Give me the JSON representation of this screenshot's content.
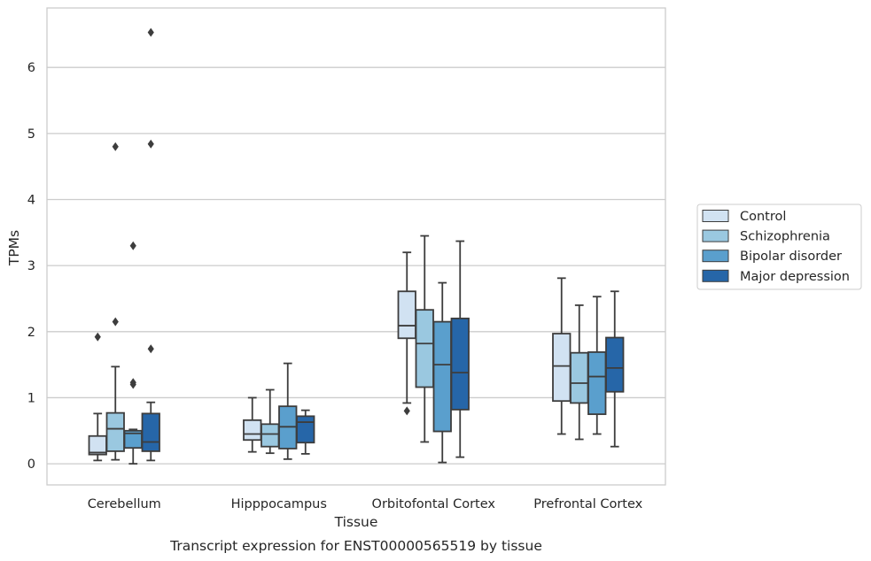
{
  "chart_data": {
    "type": "box",
    "title": "Transcript expression for ENST00000565519 by tissue",
    "xlabel": "Tissue",
    "ylabel": "TPMs",
    "ylim": [
      -0.32,
      6.9
    ],
    "yticks": [
      0,
      1,
      2,
      3,
      4,
      5,
      6
    ],
    "grid": true,
    "legend_position": "right",
    "categories": [
      "Cerebellum",
      "Hipppocampus",
      "Orbitofontal Cortex",
      "Prefrontal Cortex"
    ],
    "series": [
      {
        "name": "Control",
        "color": "#d1e2f2",
        "boxes": [
          {
            "whislo": 0.05,
            "q1": 0.14,
            "med": 0.17,
            "q3": 0.42,
            "whishi": 0.76,
            "fliers": [
              1.92
            ]
          },
          {
            "whislo": 0.18,
            "q1": 0.36,
            "med": 0.45,
            "q3": 0.66,
            "whishi": 1.0,
            "fliers": []
          },
          {
            "whislo": 0.92,
            "q1": 1.9,
            "med": 2.09,
            "q3": 2.61,
            "whishi": 3.2,
            "fliers": [
              0.8
            ]
          },
          {
            "whislo": 0.45,
            "q1": 0.95,
            "med": 1.48,
            "q3": 1.97,
            "whishi": 2.81,
            "fliers": []
          }
        ]
      },
      {
        "name": "Schizophrenia",
        "color": "#9ac8e0",
        "boxes": [
          {
            "whislo": 0.06,
            "q1": 0.19,
            "med": 0.53,
            "q3": 0.77,
            "whishi": 1.47,
            "fliers": [
              2.15,
              4.8
            ]
          },
          {
            "whislo": 0.16,
            "q1": 0.26,
            "med": 0.45,
            "q3": 0.6,
            "whishi": 1.12,
            "fliers": []
          },
          {
            "whislo": 0.33,
            "q1": 1.16,
            "med": 1.82,
            "q3": 2.33,
            "whishi": 3.45,
            "fliers": []
          },
          {
            "whislo": 0.37,
            "q1": 0.92,
            "med": 1.22,
            "q3": 1.68,
            "whishi": 2.4,
            "fliers": []
          }
        ]
      },
      {
        "name": "Bipolar disorder",
        "color": "#5a9fcd",
        "boxes": [
          {
            "whislo": 0.0,
            "q1": 0.24,
            "med": 0.46,
            "q3": 0.5,
            "whishi": 0.52,
            "fliers": [
              1.2,
              1.23,
              3.3
            ]
          },
          {
            "whislo": 0.07,
            "q1": 0.23,
            "med": 0.56,
            "q3": 0.87,
            "whishi": 1.52,
            "fliers": []
          },
          {
            "whislo": 0.02,
            "q1": 0.49,
            "med": 1.5,
            "q3": 2.15,
            "whishi": 2.74,
            "fliers": []
          },
          {
            "whislo": 0.45,
            "q1": 0.75,
            "med": 1.32,
            "q3": 1.69,
            "whishi": 2.53,
            "fliers": []
          }
        ]
      },
      {
        "name": "Major depression",
        "color": "#2666a8",
        "boxes": [
          {
            "whislo": 0.05,
            "q1": 0.19,
            "med": 0.33,
            "q3": 0.76,
            "whishi": 0.93,
            "fliers": [
              1.74,
              4.84,
              6.53
            ]
          },
          {
            "whislo": 0.15,
            "q1": 0.32,
            "med": 0.63,
            "q3": 0.72,
            "whishi": 0.81,
            "fliers": []
          },
          {
            "whislo": 0.1,
            "q1": 0.82,
            "med": 1.38,
            "q3": 2.2,
            "whishi": 3.37,
            "fliers": []
          },
          {
            "whislo": 0.26,
            "q1": 1.09,
            "med": 1.45,
            "q3": 1.91,
            "whishi": 2.61,
            "fliers": []
          }
        ]
      }
    ]
  }
}
